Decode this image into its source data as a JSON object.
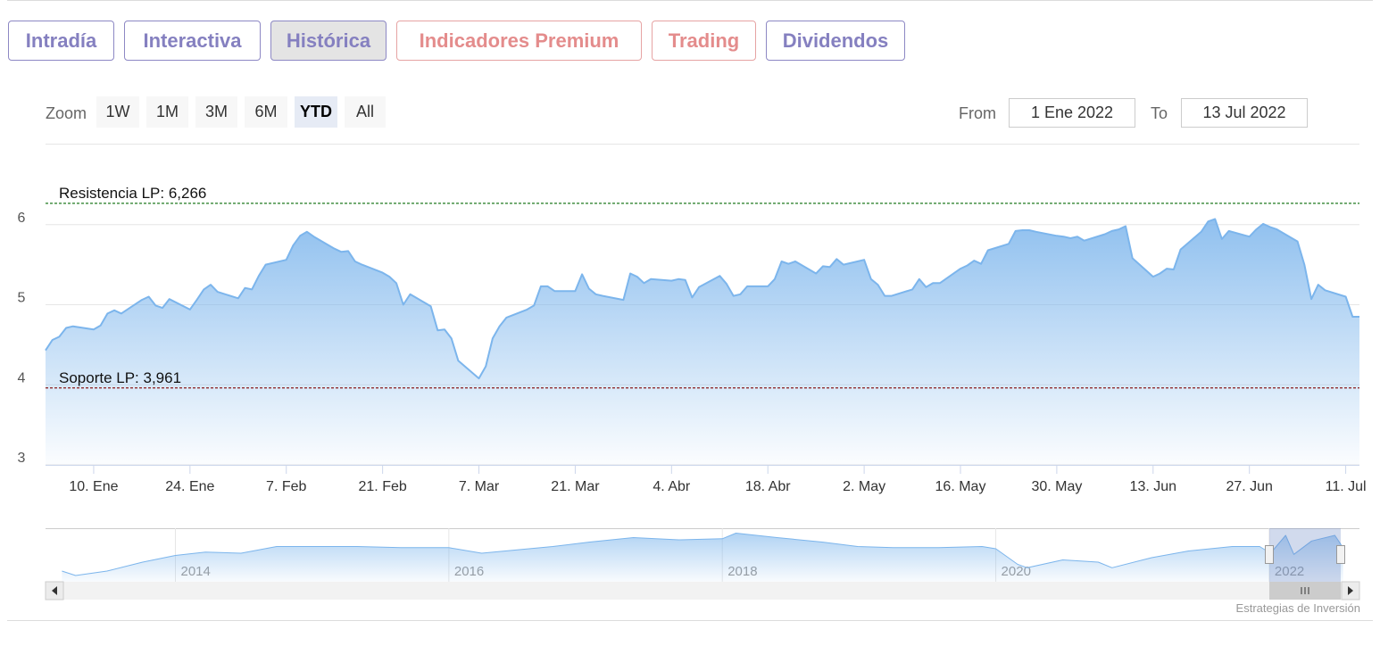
{
  "tabs": [
    "Intradía",
    "Interactiva",
    "Histórica",
    "Indicadores Premium",
    "Trading",
    "Dividendos"
  ],
  "zoom": {
    "label": "Zoom",
    "buttons": [
      "1W",
      "1M",
      "3M",
      "6M",
      "YTD",
      "All"
    ]
  },
  "range": {
    "from_label": "From",
    "from": "1 Ene 2022",
    "to_label": "To",
    "to": "13 Jul 2022"
  },
  "credit": "Estrategias de Inversión",
  "chart_data": [
    {
      "type": "area",
      "color": "#7cb5ec",
      "x": [
        "2022-01-03",
        "2022-01-04",
        "2022-01-05",
        "2022-01-06",
        "2022-01-07",
        "2022-01-10",
        "2022-01-11",
        "2022-01-12",
        "2022-01-13",
        "2022-01-14",
        "2022-01-17",
        "2022-01-18",
        "2022-01-19",
        "2022-01-20",
        "2022-01-21",
        "2022-01-24",
        "2022-01-25",
        "2022-01-26",
        "2022-01-27",
        "2022-01-28",
        "2022-01-31",
        "2022-02-01",
        "2022-02-02",
        "2022-02-03",
        "2022-02-04",
        "2022-02-07",
        "2022-02-08",
        "2022-02-09",
        "2022-02-10",
        "2022-02-11",
        "2022-02-14",
        "2022-02-15",
        "2022-02-16",
        "2022-02-17",
        "2022-02-18",
        "2022-02-21",
        "2022-02-22",
        "2022-02-23",
        "2022-02-24",
        "2022-02-25",
        "2022-02-28",
        "2022-03-01",
        "2022-03-02",
        "2022-03-03",
        "2022-03-04",
        "2022-03-07",
        "2022-03-08",
        "2022-03-09",
        "2022-03-10",
        "2022-03-11",
        "2022-03-14",
        "2022-03-15",
        "2022-03-16",
        "2022-03-17",
        "2022-03-18",
        "2022-03-21",
        "2022-03-22",
        "2022-03-23",
        "2022-03-24",
        "2022-03-25",
        "2022-03-28",
        "2022-03-29",
        "2022-03-30",
        "2022-03-31",
        "2022-04-01",
        "2022-04-04",
        "2022-04-05",
        "2022-04-06",
        "2022-04-07",
        "2022-04-08",
        "2022-04-11",
        "2022-04-12",
        "2022-04-13",
        "2022-04-14",
        "2022-04-15",
        "2022-04-18",
        "2022-04-19",
        "2022-04-20",
        "2022-04-21",
        "2022-04-22",
        "2022-04-25",
        "2022-04-26",
        "2022-04-27",
        "2022-04-28",
        "2022-04-29",
        "2022-05-02",
        "2022-05-03",
        "2022-05-04",
        "2022-05-05",
        "2022-05-06",
        "2022-05-09",
        "2022-05-10",
        "2022-05-11",
        "2022-05-12",
        "2022-05-13",
        "2022-05-16",
        "2022-05-17",
        "2022-05-18",
        "2022-05-19",
        "2022-05-20",
        "2022-05-23",
        "2022-05-24",
        "2022-05-25",
        "2022-05-26",
        "2022-05-27",
        "2022-05-30",
        "2022-05-31",
        "2022-06-01",
        "2022-06-02",
        "2022-06-03",
        "2022-06-06",
        "2022-06-07",
        "2022-06-08",
        "2022-06-09",
        "2022-06-10",
        "2022-06-13",
        "2022-06-14",
        "2022-06-15",
        "2022-06-16",
        "2022-06-17",
        "2022-06-20",
        "2022-06-21",
        "2022-06-22",
        "2022-06-23",
        "2022-06-24",
        "2022-06-27",
        "2022-06-28",
        "2022-06-29",
        "2022-06-30",
        "2022-07-01",
        "2022-07-04",
        "2022-07-05",
        "2022-07-06",
        "2022-07-07",
        "2022-07-08",
        "2022-07-11",
        "2022-07-12",
        "2022-07-13"
      ],
      "values": [
        4.43,
        4.56,
        4.6,
        4.71,
        4.73,
        4.69,
        4.74,
        4.89,
        4.93,
        4.89,
        5.06,
        5.1,
        4.99,
        4.96,
        5.07,
        4.94,
        5.06,
        5.19,
        5.25,
        5.16,
        5.08,
        5.21,
        5.19,
        5.36,
        5.5,
        5.56,
        5.74,
        5.86,
        5.91,
        5.85,
        5.7,
        5.66,
        5.67,
        5.54,
        5.5,
        5.4,
        5.35,
        5.27,
        5.0,
        5.13,
        4.98,
        4.68,
        4.69,
        4.58,
        4.3,
        4.08,
        4.23,
        4.58,
        4.73,
        4.84,
        4.94,
        4.99,
        5.23,
        5.23,
        5.17,
        5.17,
        5.38,
        5.2,
        5.13,
        5.11,
        5.06,
        5.39,
        5.35,
        5.27,
        5.32,
        5.3,
        5.32,
        5.31,
        5.09,
        5.22,
        5.36,
        5.26,
        5.11,
        5.13,
        5.23,
        5.23,
        5.32,
        5.54,
        5.51,
        5.54,
        5.39,
        5.48,
        5.47,
        5.57,
        5.5,
        5.56,
        5.32,
        5.25,
        5.11,
        5.11,
        5.19,
        5.32,
        5.22,
        5.27,
        5.27,
        5.45,
        5.49,
        5.55,
        5.51,
        5.68,
        5.76,
        5.92,
        5.93,
        5.93,
        5.91,
        5.86,
        5.85,
        5.83,
        5.85,
        5.8,
        5.88,
        5.92,
        5.94,
        5.98,
        5.58,
        5.35,
        5.39,
        5.45,
        5.44,
        5.69,
        5.91,
        6.04,
        6.07,
        5.82,
        5.92,
        5.85,
        5.94,
        6.01,
        5.97,
        5.94,
        5.79,
        5.5,
        5.07,
        5.25,
        5.18,
        5.1,
        4.85,
        4.85
      ],
      "xlim": [
        "2022-01-03",
        "2022-07-13"
      ],
      "xticks": [
        {
          "value": "2022-01-10",
          "label": "10. Ene"
        },
        {
          "value": "2022-01-24",
          "label": "24. Ene"
        },
        {
          "value": "2022-02-07",
          "label": "7. Feb"
        },
        {
          "value": "2022-02-21",
          "label": "21. Feb"
        },
        {
          "value": "2022-03-07",
          "label": "7. Mar"
        },
        {
          "value": "2022-03-21",
          "label": "21. Mar"
        },
        {
          "value": "2022-04-04",
          "label": "4. Abr"
        },
        {
          "value": "2022-04-18",
          "label": "18. Abr"
        },
        {
          "value": "2022-05-02",
          "label": "2. May"
        },
        {
          "value": "2022-05-16",
          "label": "16. May"
        },
        {
          "value": "2022-05-30",
          "label": "30. May"
        },
        {
          "value": "2022-06-13",
          "label": "13. Jun"
        },
        {
          "value": "2022-06-27",
          "label": "27. Jun"
        },
        {
          "value": "2022-07-11",
          "label": "11. Jul"
        }
      ],
      "ylim": [
        3,
        7
      ],
      "yticks": [
        3,
        4,
        5,
        6
      ],
      "grid": true,
      "plot_lines": [
        {
          "label": "Resistencia LP: 6,266",
          "value": 6.266,
          "color": "#1f7a1f"
        },
        {
          "label": "Soporte LP: 3,961",
          "value": 3.961,
          "color": "#8b1a1a"
        }
      ]
    },
    {
      "type": "area",
      "color": "#7cb5ec",
      "x": [
        2013.17,
        2013.27,
        2013.5,
        2013.76,
        2014.0,
        2014.22,
        2014.48,
        2014.74,
        2015.0,
        2015.33,
        2015.65,
        2016.0,
        2016.24,
        2016.5,
        2016.76,
        2017.03,
        2017.35,
        2017.68,
        2018.0,
        2018.1,
        2018.4,
        2018.73,
        2018.99,
        2019.25,
        2019.58,
        2019.9,
        2020.0,
        2020.16,
        2020.23,
        2020.49,
        2020.75,
        2020.85,
        2021.14,
        2021.41,
        2021.73,
        2021.93,
        2022.01,
        2022.12,
        2022.18,
        2022.31,
        2022.48,
        2022.54
      ],
      "values": [
        2.8,
        2.4,
        2.8,
        3.6,
        4.2,
        4.5,
        4.4,
        5.0,
        5.0,
        5.0,
        4.9,
        4.9,
        4.4,
        4.7,
        5.0,
        5.4,
        5.8,
        5.6,
        5.7,
        6.2,
        5.8,
        5.4,
        5.0,
        4.9,
        4.9,
        5.0,
        4.8,
        3.4,
        3.1,
        3.8,
        3.6,
        3.1,
        4.0,
        4.6,
        5.0,
        5.0,
        4.4,
        6.0,
        4.3,
        5.5,
        6.0,
        4.9
      ],
      "xlim": [
        2013.05,
        2022.66
      ],
      "xticks": [
        2014,
        2016,
        2018,
        2020,
        2022
      ],
      "ylim": [
        1.84,
        6.32
      ]
    }
  ]
}
